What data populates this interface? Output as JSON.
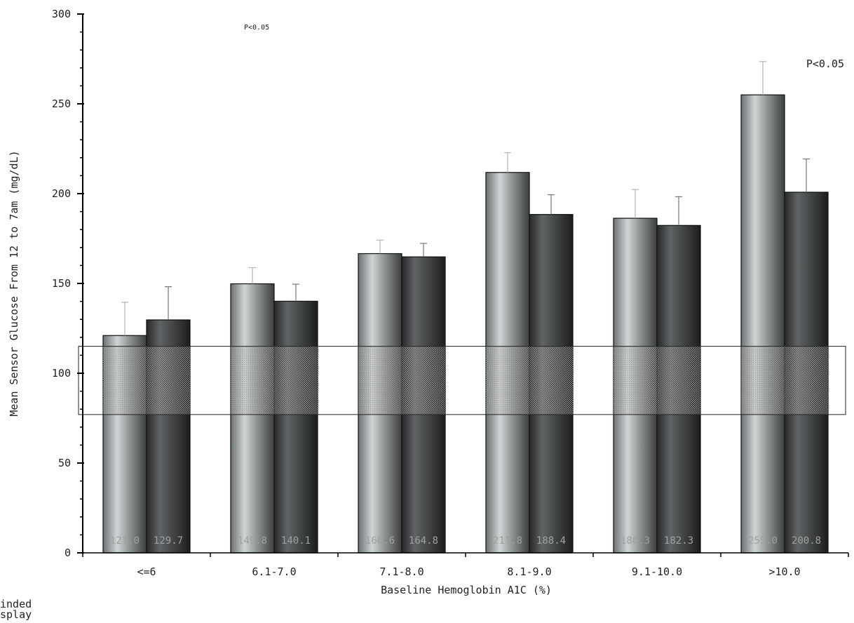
{
  "chart_data": {
    "type": "bar",
    "categories": [
      "<=6",
      "6.1-7.0",
      "7.1-8.0",
      "8.1-9.0",
      "9.1-10.0",
      ">10.0"
    ],
    "series": [
      {
        "values": [
          121.0,
          149.8,
          166.6,
          211.8,
          186.3,
          255.0
        ],
        "errors": [
          18.5,
          9.0,
          7.5,
          11.0,
          16.0,
          18.5
        ],
        "value_labels": [
          "121.0",
          "149.8",
          "166.6",
          "211.8",
          "186.3",
          "255.0"
        ]
      },
      {
        "values": [
          129.7,
          140.1,
          164.8,
          188.4,
          182.3,
          200.8
        ],
        "errors": [
          18.5,
          9.5,
          7.5,
          11.0,
          16.0,
          18.5
        ],
        "value_labels": [
          "129.7",
          "140.1",
          "164.8",
          "188.4",
          "182.3",
          "200.8"
        ]
      }
    ],
    "target_band": [
      77,
      115
    ],
    "xlabel": "Baseline Hemoglobin A1C (%)",
    "ylabel": "Mean Sensor Glucose From 12 to 7am (mg/dL)",
    "ylim": [
      0,
      300
    ],
    "yticks": [
      "0",
      "50",
      "100",
      "150",
      "200",
      "250",
      "300"
    ],
    "annotations": [
      {
        "text": "P<0.05",
        "category": "7.1-8.0",
        "size": "small"
      },
      {
        "text": "P<0.05",
        "category": ">10.0",
        "size": "normal"
      }
    ],
    "legend_fragment": [
      "inded",
      "splay"
    ],
    "grid": false
  }
}
